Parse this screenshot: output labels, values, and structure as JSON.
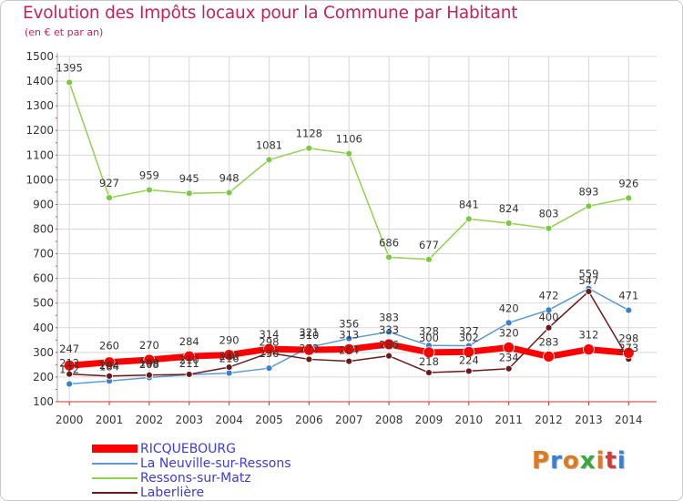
{
  "header": {
    "title": "Evolution des Impôts locaux pour la Commune par Habitant",
    "subtitle": "(en € et par an)"
  },
  "logo": {
    "text": "Proxiti",
    "colors": [
      "#e07a1f",
      "#3a7fd0",
      "#e07a1f",
      "#3aa83a",
      "#e07a1f",
      "#d83a3a",
      "#3a7fd0"
    ]
  },
  "chart_data": {
    "type": "line",
    "title": "Evolution des Impôts locaux pour la Commune par Habitant",
    "subtitle": "(en € et par an)",
    "ylim": [
      100,
      1500
    ],
    "yticks": [
      100,
      200,
      300,
      400,
      500,
      600,
      700,
      800,
      900,
      1000,
      1100,
      1200,
      1300,
      1400,
      1500
    ],
    "grid": true,
    "legend_position": "bottom-left",
    "categories": [
      "2000",
      "2001",
      "2002",
      "2003",
      "2004",
      "2005",
      "2006",
      "2007",
      "2008",
      "2009",
      "2010",
      "2011",
      "2012",
      "2013",
      "2014"
    ],
    "series": [
      {
        "name": "RICQUEBOURG",
        "color": "#ff0000",
        "values": [
          247,
          260,
          270,
          284,
          290,
          314,
          310,
          313,
          333,
          300,
          302,
          320,
          283,
          312,
          298
        ]
      },
      {
        "name": "La Neuville-sur-Ressons",
        "color": "#5b9bd5",
        "values": [
          172,
          184,
          198,
          210,
          216,
          236,
          321,
          356,
          383,
          328,
          327,
          420,
          472,
          559,
          471
        ]
      },
      {
        "name": "Ressons-sur-Matz",
        "color": "#92d050",
        "values": [
          1395,
          927,
          959,
          945,
          948,
          1081,
          1128,
          1106,
          686,
          677,
          841,
          824,
          803,
          893,
          926
        ]
      },
      {
        "name": "Laberlière",
        "color": "#6b1a1a",
        "values": [
          212,
          204,
          208,
          211,
          240,
          298,
          272,
          264,
          286,
          218,
          224,
          234,
          400,
          547,
          273
        ]
      }
    ]
  }
}
